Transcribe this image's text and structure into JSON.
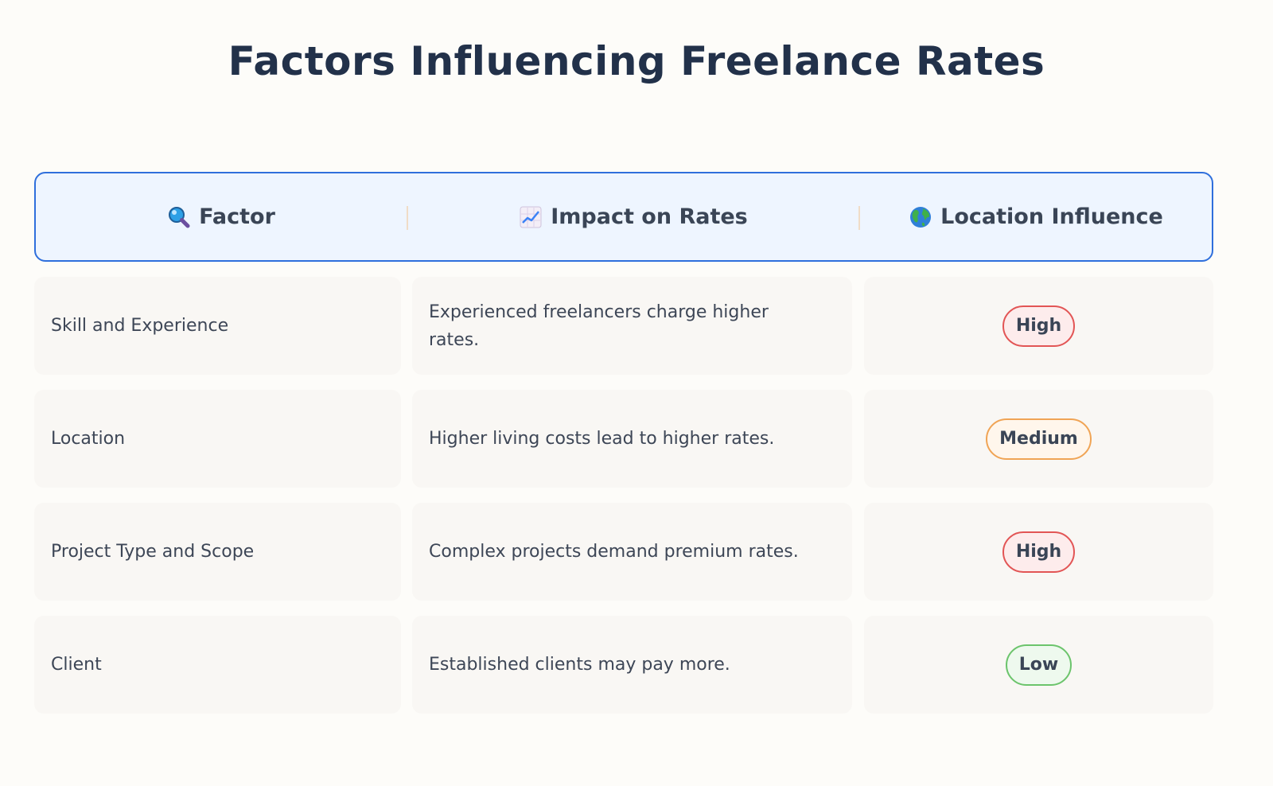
{
  "title": "Factors Influencing Freelance Rates",
  "header": {
    "columns": [
      {
        "icon": "magnifier-icon",
        "label": "Factor"
      },
      {
        "icon": "chart-increasing-icon",
        "label": "Impact on Rates"
      },
      {
        "icon": "globe-icon",
        "label": "Location Influence"
      }
    ]
  },
  "rows": [
    {
      "factor": "Skill and Experience",
      "impact": "Experienced freelancers charge higher rates.",
      "influence": "High",
      "level": "high"
    },
    {
      "factor": "Location",
      "impact": "Higher living costs lead to higher rates.",
      "influence": "Medium",
      "level": "medium"
    },
    {
      "factor": "Project Type and Scope",
      "impact": "Complex projects demand premium rates.",
      "influence": "High",
      "level": "high"
    },
    {
      "factor": "Client",
      "impact": "Established clients may pay more.",
      "influence": "Low",
      "level": "low"
    }
  ],
  "colors": {
    "high": "#e25555",
    "medium": "#f0a455",
    "low": "#6cc46c",
    "header_border": "#2f6fdc"
  }
}
